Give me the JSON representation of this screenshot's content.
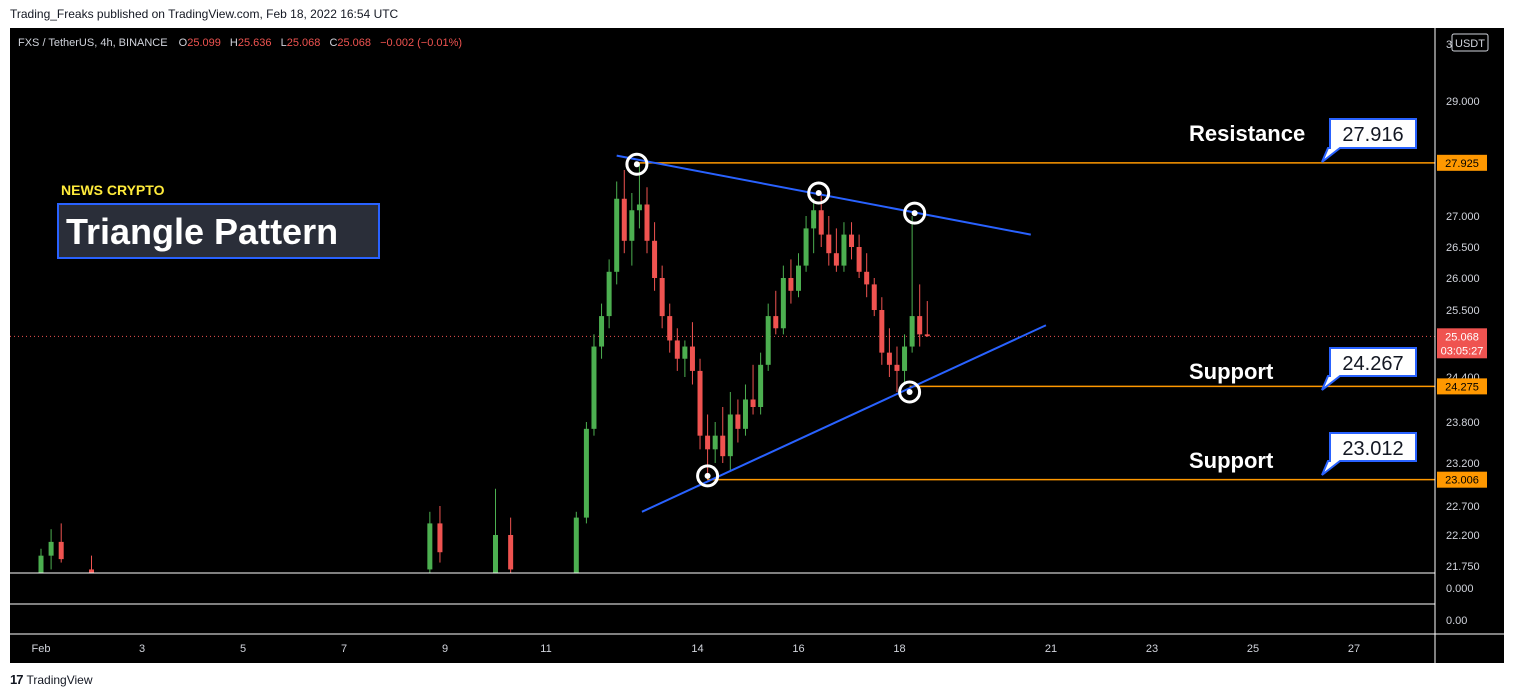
{
  "header": {
    "published": "Trading_Freaks published on TradingView.com, Feb 18, 2022 16:54 UTC"
  },
  "legend": {
    "symbol": "FXS / TetherUS, 4h, BINANCE",
    "o_label": "O",
    "o": "25.099",
    "h_label": "H",
    "h": "25.636",
    "l_label": "L",
    "l": "25.068",
    "c_label": "C",
    "c": "25.068",
    "change": "−0.002 (−0.01%)"
  },
  "price_axis": {
    "top_label": "3",
    "currency": "USDT",
    "current_price": "25.068",
    "countdown": "03:05:27"
  },
  "annotations": {
    "news_tag": "NEWS CRYPTO",
    "title": "Triangle Pattern",
    "resistance_label": "Resistance",
    "support1_label": "Support",
    "support2_label": "Support",
    "resistance_callout": "27.916",
    "support1_callout": "24.267",
    "support2_callout": "23.012"
  },
  "footer": {
    "brand": "TradingView",
    "logo_mark": "17"
  },
  "colors": {
    "up": "#26a69a",
    "up_green": "#4caf50",
    "down": "#ef5350",
    "level_line": "#ff9800",
    "trend_line": "#2962ff",
    "title_yellow": "#ffeb3b",
    "label_blue": "#2962ff"
  },
  "chart_data": {
    "type": "candlestick",
    "x_ticks": [
      "Feb",
      "3",
      "5",
      "7",
      "9",
      "11",
      "14",
      "16",
      "18",
      "21",
      "23",
      "25",
      "27"
    ],
    "y_ticks": [
      29.0,
      27.0,
      26.5,
      26.0,
      25.5,
      24.4,
      23.8,
      23.2,
      22.7,
      22.2,
      21.75
    ],
    "indicator_ticks": [
      "0.000",
      "0.00"
    ],
    "levels": [
      {
        "name": "resistance",
        "value": 27.925
      },
      {
        "name": "support",
        "value": 24.275
      },
      {
        "name": "support",
        "value": 23.006
      }
    ],
    "current_price": 25.068,
    "trendlines": [
      {
        "name": "upper",
        "from": [
          12.4,
          28.05
        ],
        "to": [
          20.6,
          26.7
        ]
      },
      {
        "name": "lower",
        "from": [
          12.9,
          22.6
        ],
        "to": [
          20.9,
          25.25
        ]
      }
    ],
    "pivots": [
      [
        12.8,
        27.9
      ],
      [
        16.4,
        27.4
      ],
      [
        18.3,
        27.05
      ],
      [
        14.2,
        23.05
      ],
      [
        18.2,
        24.2
      ]
    ],
    "candles": [
      {
        "x": 1.0,
        "o": 21.6,
        "h": 22.0,
        "l": 21.55,
        "c": 21.9
      },
      {
        "x": 1.2,
        "o": 21.9,
        "h": 22.3,
        "l": 21.7,
        "c": 22.1
      },
      {
        "x": 1.4,
        "o": 22.1,
        "h": 22.4,
        "l": 21.8,
        "c": 21.85
      },
      {
        "x": 2.0,
        "o": 21.7,
        "h": 21.9,
        "l": 21.55,
        "c": 21.65
      },
      {
        "x": 8.7,
        "o": 21.7,
        "h": 22.6,
        "l": 21.6,
        "c": 22.4
      },
      {
        "x": 8.9,
        "o": 22.4,
        "h": 22.7,
        "l": 21.8,
        "c": 21.95
      },
      {
        "x": 10.0,
        "o": 21.6,
        "h": 22.9,
        "l": 21.55,
        "c": 22.2
      },
      {
        "x": 10.3,
        "o": 22.2,
        "h": 22.5,
        "l": 21.6,
        "c": 21.7
      },
      {
        "x": 11.6,
        "o": 21.6,
        "h": 22.6,
        "l": 21.55,
        "c": 22.5
      },
      {
        "x": 11.8,
        "o": 22.5,
        "h": 23.8,
        "l": 22.4,
        "c": 23.7
      },
      {
        "x": 11.95,
        "o": 23.7,
        "h": 25.1,
        "l": 23.6,
        "c": 24.9
      },
      {
        "x": 12.1,
        "o": 24.9,
        "h": 25.6,
        "l": 24.7,
        "c": 25.4
      },
      {
        "x": 12.25,
        "o": 25.4,
        "h": 26.3,
        "l": 25.2,
        "c": 26.1
      },
      {
        "x": 12.4,
        "o": 26.1,
        "h": 27.6,
        "l": 25.9,
        "c": 27.3
      },
      {
        "x": 12.55,
        "o": 27.3,
        "h": 27.8,
        "l": 26.4,
        "c": 26.6
      },
      {
        "x": 12.7,
        "o": 26.6,
        "h": 27.4,
        "l": 26.2,
        "c": 27.1
      },
      {
        "x": 12.85,
        "o": 27.1,
        "h": 27.9,
        "l": 26.8,
        "c": 27.2
      },
      {
        "x": 13.0,
        "o": 27.2,
        "h": 27.5,
        "l": 26.4,
        "c": 26.6
      },
      {
        "x": 13.15,
        "o": 26.6,
        "h": 26.9,
        "l": 25.8,
        "c": 26.0
      },
      {
        "x": 13.3,
        "o": 26.0,
        "h": 26.2,
        "l": 25.2,
        "c": 25.4
      },
      {
        "x": 13.45,
        "o": 25.4,
        "h": 25.6,
        "l": 24.8,
        "c": 25.0
      },
      {
        "x": 13.6,
        "o": 25.0,
        "h": 25.2,
        "l": 24.5,
        "c": 24.7
      },
      {
        "x": 13.75,
        "o": 24.7,
        "h": 25.0,
        "l": 24.4,
        "c": 24.9
      },
      {
        "x": 13.9,
        "o": 24.9,
        "h": 25.3,
        "l": 24.3,
        "c": 24.5
      },
      {
        "x": 14.05,
        "o": 24.5,
        "h": 24.7,
        "l": 23.4,
        "c": 23.6
      },
      {
        "x": 14.2,
        "o": 23.6,
        "h": 23.9,
        "l": 23.0,
        "c": 23.4
      },
      {
        "x": 14.35,
        "o": 23.4,
        "h": 23.8,
        "l": 23.2,
        "c": 23.6
      },
      {
        "x": 14.5,
        "o": 23.6,
        "h": 24.0,
        "l": 23.2,
        "c": 23.3
      },
      {
        "x": 14.65,
        "o": 23.3,
        "h": 24.2,
        "l": 23.1,
        "c": 23.9
      },
      {
        "x": 14.8,
        "o": 23.9,
        "h": 24.1,
        "l": 23.5,
        "c": 23.7
      },
      {
        "x": 14.95,
        "o": 23.7,
        "h": 24.3,
        "l": 23.6,
        "c": 24.1
      },
      {
        "x": 15.1,
        "o": 24.1,
        "h": 24.6,
        "l": 23.9,
        "c": 24.0
      },
      {
        "x": 15.25,
        "o": 24.0,
        "h": 24.8,
        "l": 23.9,
        "c": 24.6
      },
      {
        "x": 15.4,
        "o": 24.6,
        "h": 25.6,
        "l": 24.5,
        "c": 25.4
      },
      {
        "x": 15.55,
        "o": 25.4,
        "h": 25.8,
        "l": 25.1,
        "c": 25.2
      },
      {
        "x": 15.7,
        "o": 25.2,
        "h": 26.2,
        "l": 25.1,
        "c": 26.0
      },
      {
        "x": 15.85,
        "o": 26.0,
        "h": 26.3,
        "l": 25.6,
        "c": 25.8
      },
      {
        "x": 16.0,
        "o": 25.8,
        "h": 26.4,
        "l": 25.7,
        "c": 26.2
      },
      {
        "x": 16.15,
        "o": 26.2,
        "h": 27.0,
        "l": 26.1,
        "c": 26.8
      },
      {
        "x": 16.3,
        "o": 26.8,
        "h": 27.3,
        "l": 26.4,
        "c": 27.1
      },
      {
        "x": 16.45,
        "o": 27.1,
        "h": 27.4,
        "l": 26.5,
        "c": 26.7
      },
      {
        "x": 16.6,
        "o": 26.7,
        "h": 27.0,
        "l": 26.2,
        "c": 26.4
      },
      {
        "x": 16.75,
        "o": 26.4,
        "h": 26.8,
        "l": 26.1,
        "c": 26.2
      },
      {
        "x": 16.9,
        "o": 26.2,
        "h": 26.9,
        "l": 26.1,
        "c": 26.7
      },
      {
        "x": 17.05,
        "o": 26.7,
        "h": 26.9,
        "l": 26.3,
        "c": 26.5
      },
      {
        "x": 17.2,
        "o": 26.5,
        "h": 26.7,
        "l": 26.0,
        "c": 26.1
      },
      {
        "x": 17.35,
        "o": 26.1,
        "h": 26.4,
        "l": 25.7,
        "c": 25.9
      },
      {
        "x": 17.5,
        "o": 25.9,
        "h": 26.0,
        "l": 25.4,
        "c": 25.5
      },
      {
        "x": 17.65,
        "o": 25.5,
        "h": 25.7,
        "l": 24.6,
        "c": 24.8
      },
      {
        "x": 17.8,
        "o": 24.8,
        "h": 25.2,
        "l": 24.4,
        "c": 24.6
      },
      {
        "x": 17.95,
        "o": 24.6,
        "h": 24.9,
        "l": 24.2,
        "c": 24.5
      },
      {
        "x": 18.1,
        "o": 24.5,
        "h": 25.1,
        "l": 24.3,
        "c": 24.9
      },
      {
        "x": 18.25,
        "o": 24.9,
        "h": 27.0,
        "l": 24.8,
        "c": 25.4
      },
      {
        "x": 18.4,
        "o": 25.4,
        "h": 25.9,
        "l": 24.9,
        "c": 25.1
      },
      {
        "x": 18.55,
        "o": 25.1,
        "h": 25.64,
        "l": 25.06,
        "c": 25.07
      }
    ]
  }
}
